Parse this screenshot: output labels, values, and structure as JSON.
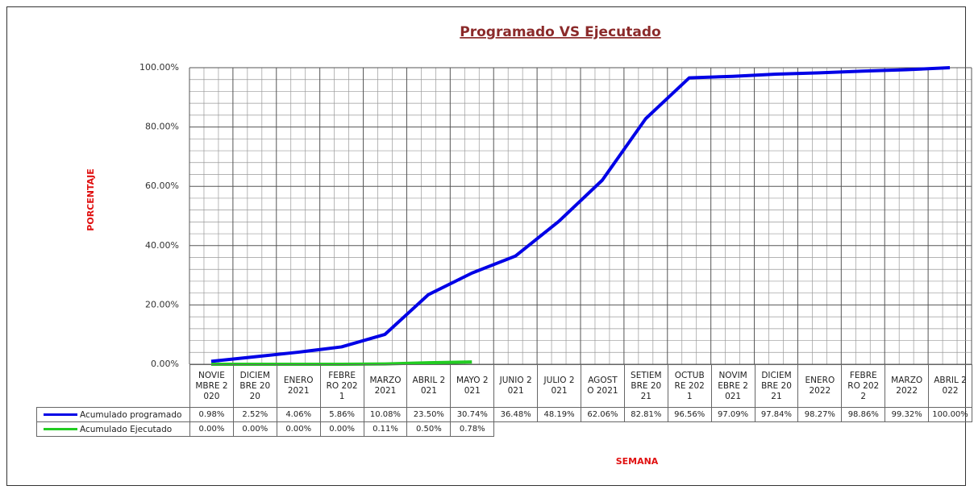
{
  "chart_data": {
    "type": "line",
    "title": "Programado VS Ejecutado",
    "y_label": "PORCENTAJE",
    "x_label": "SEMANA",
    "categories": [
      "NOVIEMBRE 2020",
      "DICIEMBRE 2020",
      "ENERO 2021",
      "FEBRERO 2021",
      "MARZO 2021",
      "ABRIL 2021",
      "MAYO 2021",
      "JUNIO 2021",
      "JULIO 2021",
      "AGOSTO 2021",
      "SETIEMBRE 2021",
      "OCTUBRE 2021",
      "NOVIMEBRE 2021",
      "DICIEMBRE 2021",
      "ENERO 2022",
      "FEBRERO 2022",
      "MARZO 2022",
      "ABRIL 2022"
    ],
    "series": [
      {
        "name": "Acumulado programado",
        "color": "#0000e6",
        "values": [
          0.98,
          2.52,
          4.06,
          5.86,
          10.08,
          23.5,
          30.74,
          36.48,
          48.19,
          62.06,
          82.81,
          96.56,
          97.09,
          97.84,
          98.27,
          98.86,
          99.32,
          100
        ],
        "value_labels": [
          "0.98%",
          "2.52%",
          "4.06%",
          "5.86%",
          "10.08%",
          "23.50%",
          "30.74%",
          "36.48%",
          "48.19%",
          "62.06%",
          "82.81%",
          "96.56%",
          "97.09%",
          "97.84%",
          "98.27%",
          "98.86%",
          "99.32%",
          "100.00%"
        ]
      },
      {
        "name": "Acumulado Ejecutado",
        "color": "#22cc22",
        "values": [
          0,
          0,
          0,
          0,
          0.11,
          0.5,
          0.78,
          null,
          null,
          null,
          null,
          null,
          null,
          null,
          null,
          null,
          null,
          null
        ],
        "value_labels": [
          "0.00%",
          "0.00%",
          "0.00%",
          "0.00%",
          "0.11%",
          "0.50%",
          "0.78%",
          null,
          null,
          null,
          null,
          null,
          null,
          null,
          null,
          null,
          null,
          null
        ]
      }
    ],
    "ylim": [
      0,
      100
    ],
    "yticks": [
      {
        "value": 0,
        "label": "0.00%"
      },
      {
        "value": 20,
        "label": "20.00%"
      },
      {
        "value": 40,
        "label": "40.00%"
      },
      {
        "value": 60,
        "label": "60.00%"
      },
      {
        "value": 80,
        "label": "80.00%"
      },
      {
        "value": 100,
        "label": "100.00%"
      }
    ],
    "grid": true
  }
}
